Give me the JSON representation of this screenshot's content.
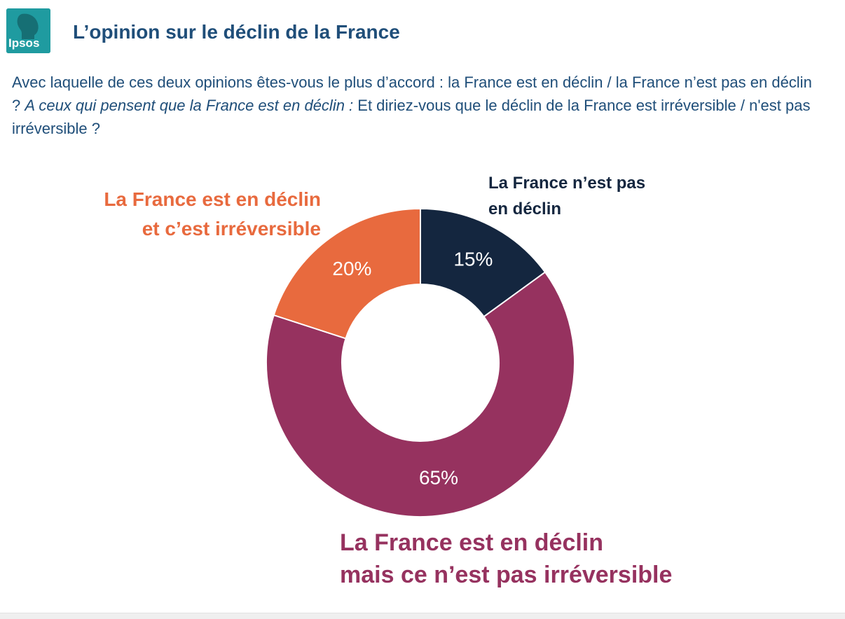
{
  "logo": {
    "text": "Ipsos"
  },
  "header": {
    "title": "L’opinion sur le déclin de la France"
  },
  "question": {
    "part1": "Avec laquelle de ces deux opinions êtes-vous le plus d’accord : la France est en déclin / la France n’est pas en déclin ? ",
    "part2_italic": "A ceux qui pensent que la France est en déclin :",
    "part3": " Et diriez-vous que le déclin de la France est irréversible / n'est pas irréversible ?"
  },
  "colors": {
    "brand": "#1f9ba0",
    "title": "#1f4e79",
    "navy": "#14263f",
    "purple": "#96325f",
    "orange": "#e86a3e"
  },
  "chart_data": {
    "type": "pie",
    "donut": true,
    "title": "",
    "slices": [
      {
        "label_line1": "La France n’est pas",
        "label_line2": "en déclin",
        "value": 15,
        "value_label": "15%",
        "color": "#14263f"
      },
      {
        "label_line1": "La France est en déclin",
        "label_line2": "mais ce n’est pas irréversible",
        "value": 65,
        "value_label": "65%",
        "color": "#96325f"
      },
      {
        "label_line1": "La France est en déclin",
        "label_line2": "et c’est irréversible",
        "value": 20,
        "value_label": "20%",
        "color": "#e86a3e"
      }
    ],
    "start_angle": "top (12 o'clock)",
    "direction": "clockwise"
  }
}
